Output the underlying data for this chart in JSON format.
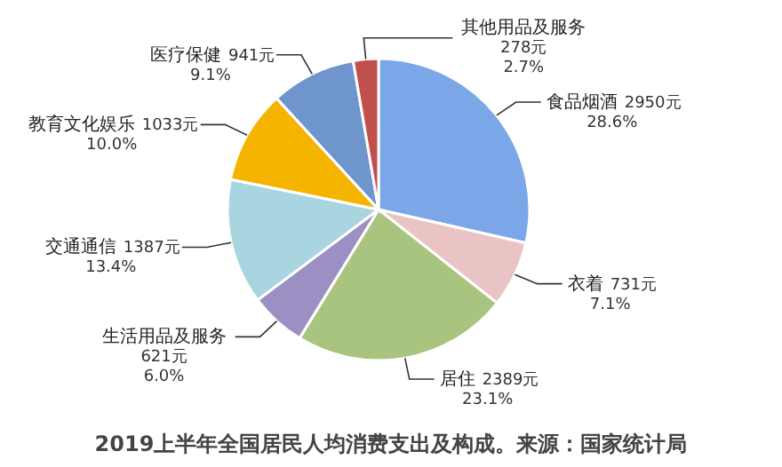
{
  "chart_data": {
    "type": "pie",
    "title": "2019上半年全国居民人均消费支出及构成。来源：国家统计局",
    "categories": [
      "食品烟酒",
      "衣着",
      "居住",
      "生活用品及服务",
      "交通通信",
      "教育文化娱乐",
      "医疗保健",
      "其他用品及服务"
    ],
    "values": [
      2950,
      731,
      2389,
      621,
      1387,
      1033,
      941,
      278
    ],
    "colors": [
      "#7ba7e8",
      "#eac4c4",
      "#a9c47f",
      "#9b8fc4",
      "#a9d5e0",
      "#f5b400",
      "#6f96cc",
      "#c0504d"
    ],
    "value_labels": [
      "2950元\n28.6%",
      "731元\n7.1%",
      "2389元\n23.1%",
      "621元\n6.0%",
      "1387元\n13.4%",
      "1033元\n10.0%",
      "941元\n9.1%",
      "278元\n2.7%"
    ]
  }
}
